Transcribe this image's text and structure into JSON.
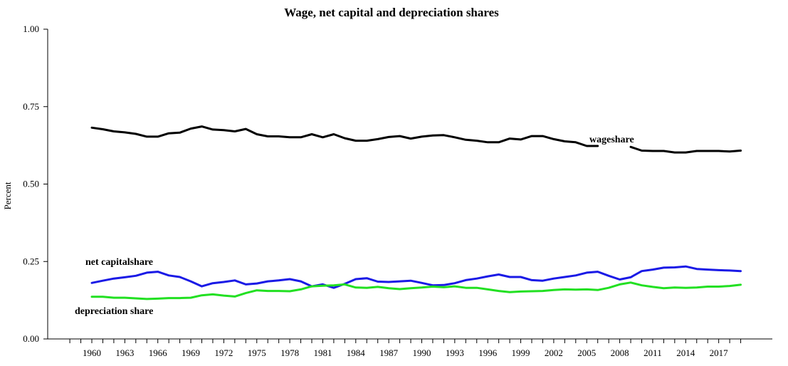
{
  "chart_data": {
    "type": "line",
    "title": "Wage, net capital and depreciation shares",
    "ylabel": "Percent",
    "xlabel": "",
    "ylim": [
      0.0,
      1.0
    ],
    "yticks": [
      "0.00",
      "0.25",
      "0.50",
      "0.75",
      "1.00"
    ],
    "x_tick_labels": [
      "1960",
      "1963",
      "1966",
      "1969",
      "1972",
      "1975",
      "1978",
      "1981",
      "1984",
      "1987",
      "1990",
      "1993",
      "1996",
      "1999",
      "2002",
      "2005",
      "2008",
      "2011",
      "2014",
      "2017"
    ],
    "x": [
      1960,
      1961,
      1962,
      1963,
      1964,
      1965,
      1966,
      1967,
      1968,
      1969,
      1970,
      1971,
      1972,
      1973,
      1974,
      1975,
      1976,
      1977,
      1978,
      1979,
      1980,
      1981,
      1982,
      1983,
      1984,
      1985,
      1986,
      1987,
      1988,
      1989,
      1990,
      1991,
      1992,
      1993,
      1994,
      1995,
      1996,
      1997,
      1998,
      1999,
      2000,
      2001,
      2002,
      2003,
      2004,
      2005,
      2006,
      2007,
      2008,
      2009,
      2010,
      2011,
      2012,
      2013,
      2014,
      2015,
      2016,
      2017,
      2018,
      2019
    ],
    "series": [
      {
        "name": "wageshare",
        "color": "#000000",
        "values": [
          0.682,
          0.677,
          0.67,
          0.667,
          0.662,
          0.653,
          0.653,
          0.664,
          0.666,
          0.679,
          0.686,
          0.676,
          0.674,
          0.67,
          0.678,
          0.661,
          0.654,
          0.654,
          0.651,
          0.651,
          0.661,
          0.651,
          0.661,
          0.648,
          0.64,
          0.64,
          0.645,
          0.652,
          0.655,
          0.647,
          0.653,
          0.657,
          0.658,
          0.651,
          0.643,
          0.64,
          0.635,
          0.635,
          0.647,
          0.644,
          0.655,
          0.655,
          0.645,
          0.638,
          0.635,
          0.623,
          0.623,
          null,
          null,
          0.62,
          0.608,
          0.607,
          0.607,
          0.602,
          0.602,
          0.607,
          0.607,
          0.607,
          0.605,
          0.608
        ]
      },
      {
        "name": "net capitalshare",
        "color": "#1a1ae6",
        "values": [
          0.181,
          0.188,
          0.195,
          0.199,
          0.204,
          0.214,
          0.217,
          0.205,
          0.2,
          0.186,
          0.17,
          0.18,
          0.184,
          0.189,
          0.176,
          0.179,
          0.186,
          0.189,
          0.193,
          0.186,
          0.17,
          0.176,
          0.165,
          0.178,
          0.193,
          0.196,
          0.185,
          0.184,
          0.186,
          0.188,
          0.181,
          0.173,
          0.174,
          0.18,
          0.19,
          0.195,
          0.202,
          0.208,
          0.2,
          0.2,
          0.19,
          0.188,
          0.195,
          0.2,
          0.205,
          0.214,
          0.217,
          0.204,
          0.192,
          0.199,
          0.219,
          0.224,
          0.23,
          0.231,
          0.234,
          0.226,
          0.224,
          0.222,
          0.221,
          0.219
        ]
      },
      {
        "name": "depreciation share",
        "color": "#22e022",
        "values": [
          0.136,
          0.136,
          0.133,
          0.133,
          0.131,
          0.129,
          0.13,
          0.132,
          0.132,
          0.133,
          0.141,
          0.144,
          0.14,
          0.137,
          0.148,
          0.157,
          0.155,
          0.155,
          0.154,
          0.16,
          0.17,
          0.172,
          0.173,
          0.176,
          0.166,
          0.165,
          0.168,
          0.164,
          0.161,
          0.164,
          0.166,
          0.169,
          0.167,
          0.17,
          0.165,
          0.165,
          0.16,
          0.155,
          0.151,
          0.153,
          0.154,
          0.155,
          0.158,
          0.16,
          0.159,
          0.16,
          0.158,
          0.165,
          0.176,
          0.182,
          0.173,
          0.168,
          0.164,
          0.166,
          0.165,
          0.166,
          0.169,
          0.169,
          0.171,
          0.175
        ]
      }
    ],
    "grid": false,
    "legend": "inline labels"
  }
}
